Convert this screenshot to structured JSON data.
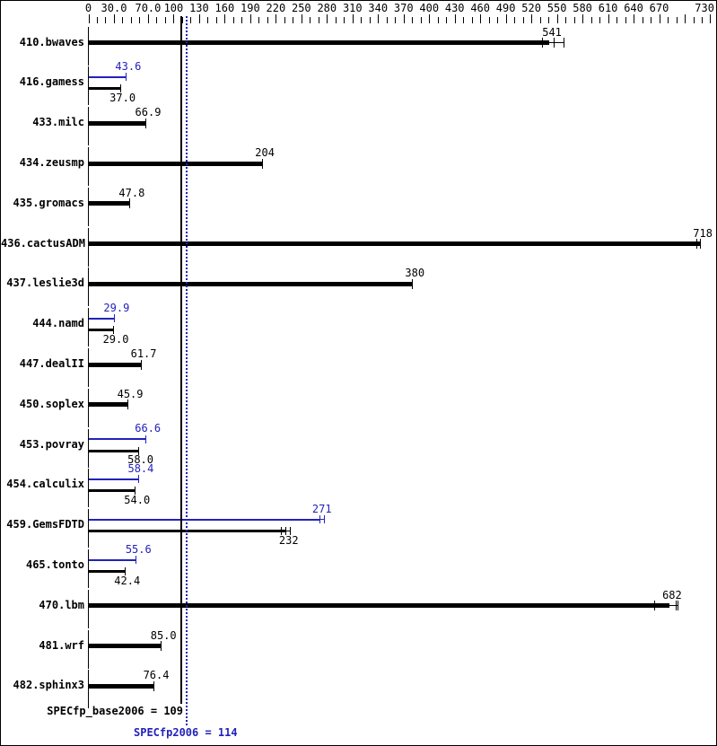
{
  "colors": {
    "base": "#000000",
    "peak": "#2222bb",
    "background": "#ffffff",
    "border": "#000000"
  },
  "summary": {
    "base_label": "SPECfp_base2006 = 109",
    "base_value": 109,
    "peak_label": "SPECfp2006 = 114",
    "peak_value": 114
  },
  "chart_data": {
    "type": "bar",
    "orientation": "horizontal",
    "title": "",
    "xlabel": "",
    "ylabel": "",
    "xlim": [
      0,
      730
    ],
    "minor_tick_step": 10,
    "grid": false,
    "x_ticks": [
      {
        "value": 0,
        "label": "0"
      },
      {
        "value": 30,
        "label": "30.0"
      },
      {
        "value": 70,
        "label": "70.0"
      },
      {
        "value": 100,
        "label": "100"
      },
      {
        "value": 130,
        "label": "130"
      },
      {
        "value": 160,
        "label": "160"
      },
      {
        "value": 190,
        "label": "190"
      },
      {
        "value": 220,
        "label": "220"
      },
      {
        "value": 250,
        "label": "250"
      },
      {
        "value": 280,
        "label": "280"
      },
      {
        "value": 310,
        "label": "310"
      },
      {
        "value": 340,
        "label": "340"
      },
      {
        "value": 370,
        "label": "370"
      },
      {
        "value": 400,
        "label": "400"
      },
      {
        "value": 430,
        "label": "430"
      },
      {
        "value": 460,
        "label": "460"
      },
      {
        "value": 490,
        "label": "490"
      },
      {
        "value": 520,
        "label": "520"
      },
      {
        "value": 550,
        "label": "550"
      },
      {
        "value": 580,
        "label": "580"
      },
      {
        "value": 610,
        "label": "610"
      },
      {
        "value": 640,
        "label": "640"
      },
      {
        "value": 670,
        "label": "670"
      },
      {
        "value": 700,
        "label": ""
      },
      {
        "value": 730,
        "label": "730"
      }
    ],
    "categories": [
      "410.bwaves",
      "416.gamess",
      "433.milc",
      "434.zeusmp",
      "435.gromacs",
      "436.cactusADM",
      "437.leslie3d",
      "444.namd",
      "447.dealII",
      "450.soplex",
      "453.povray",
      "454.calculix",
      "459.GemsFDTD",
      "465.tonto",
      "470.lbm",
      "481.wrf",
      "482.sphinx3"
    ],
    "series": [
      {
        "name": "base",
        "color": "#000000",
        "values": [
          541,
          37.0,
          66.9,
          204,
          47.8,
          718,
          380,
          29.0,
          61.7,
          45.9,
          58.0,
          54.0,
          232,
          42.4,
          682,
          85.0,
          76.4
        ]
      },
      {
        "name": "peak",
        "color": "#2222bb",
        "values": [
          null,
          43.6,
          null,
          null,
          null,
          null,
          null,
          29.9,
          null,
          null,
          66.6,
          58.4,
          271,
          55.6,
          null,
          null,
          null
        ]
      }
    ],
    "reference_lines": [
      {
        "value": 109,
        "style": "solid",
        "color": "#000000",
        "label": "SPECfp_base2006 = 109"
      },
      {
        "value": 114,
        "style": "dotted",
        "color": "#2222bb",
        "label": "SPECfp2006 = 114"
      }
    ],
    "rows": [
      {
        "name": "410.bwaves",
        "bars": [
          {
            "series": "base",
            "value": 541,
            "label": "541",
            "runs": [
              533,
              546,
              558
            ]
          }
        ]
      },
      {
        "name": "416.gamess",
        "bars": [
          {
            "series": "peak",
            "value": 43.6,
            "label": "43.6",
            "runs": [
              43.6
            ]
          },
          {
            "series": "base",
            "value": 37.0,
            "label": "37.0",
            "runs": [
              37.0
            ]
          }
        ]
      },
      {
        "name": "433.milc",
        "bars": [
          {
            "series": "base",
            "value": 66.9,
            "label": "66.9",
            "runs": [
              66.9
            ]
          }
        ]
      },
      {
        "name": "434.zeusmp",
        "bars": [
          {
            "series": "base",
            "value": 204,
            "label": "204",
            "runs": [
              204
            ]
          }
        ]
      },
      {
        "name": "435.gromacs",
        "bars": [
          {
            "series": "base",
            "value": 47.8,
            "label": "47.8",
            "runs": [
              47.8
            ]
          }
        ]
      },
      {
        "name": "436.cactusADM",
        "bars": [
          {
            "series": "base",
            "value": 718,
            "label": "718",
            "runs": [
              714,
              718
            ]
          }
        ]
      },
      {
        "name": "437.leslie3d",
        "bars": [
          {
            "series": "base",
            "value": 380,
            "label": "380",
            "runs": [
              380
            ]
          }
        ]
      },
      {
        "name": "444.namd",
        "bars": [
          {
            "series": "peak",
            "value": 29.9,
            "label": "29.9",
            "runs": [
              29.9
            ]
          },
          {
            "series": "base",
            "value": 29.0,
            "label": "29.0",
            "runs": [
              29.0
            ]
          }
        ]
      },
      {
        "name": "447.dealII",
        "bars": [
          {
            "series": "base",
            "value": 61.7,
            "label": "61.7",
            "runs": [
              61.7
            ]
          }
        ]
      },
      {
        "name": "450.soplex",
        "bars": [
          {
            "series": "base",
            "value": 45.9,
            "label": "45.9",
            "runs": [
              45.9
            ]
          }
        ]
      },
      {
        "name": "453.povray",
        "bars": [
          {
            "series": "peak",
            "value": 66.6,
            "label": "66.6",
            "runs": [
              66.6
            ]
          },
          {
            "series": "base",
            "value": 58.0,
            "label": "58.0",
            "runs": [
              58.0
            ]
          }
        ]
      },
      {
        "name": "454.calculix",
        "bars": [
          {
            "series": "peak",
            "value": 58.4,
            "label": "58.4",
            "runs": [
              58.4
            ]
          },
          {
            "series": "base",
            "value": 54.0,
            "label": "54.0",
            "runs": [
              54.0
            ]
          }
        ]
      },
      {
        "name": "459.GemsFDTD",
        "bars": [
          {
            "series": "peak",
            "value": 271,
            "label": "271",
            "runs": [
              271,
              277
            ]
          },
          {
            "series": "base",
            "value": 232,
            "label": "232",
            "runs": [
              226,
              231,
              237
            ]
          }
        ]
      },
      {
        "name": "465.tonto",
        "bars": [
          {
            "series": "peak",
            "value": 55.6,
            "label": "55.6",
            "runs": [
              55.6
            ]
          },
          {
            "series": "base",
            "value": 42.4,
            "label": "42.4",
            "runs": [
              42.4
            ]
          }
        ]
      },
      {
        "name": "470.lbm",
        "bars": [
          {
            "series": "base",
            "value": 682,
            "label": "682",
            "runs": [
              664,
              689,
              692
            ]
          }
        ]
      },
      {
        "name": "481.wrf",
        "bars": [
          {
            "series": "base",
            "value": 85.0,
            "label": "85.0",
            "runs": [
              85.0
            ]
          }
        ]
      },
      {
        "name": "482.sphinx3",
        "bars": [
          {
            "series": "base",
            "value": 76.4,
            "label": "76.4",
            "runs": [
              76.4
            ]
          }
        ]
      }
    ]
  }
}
